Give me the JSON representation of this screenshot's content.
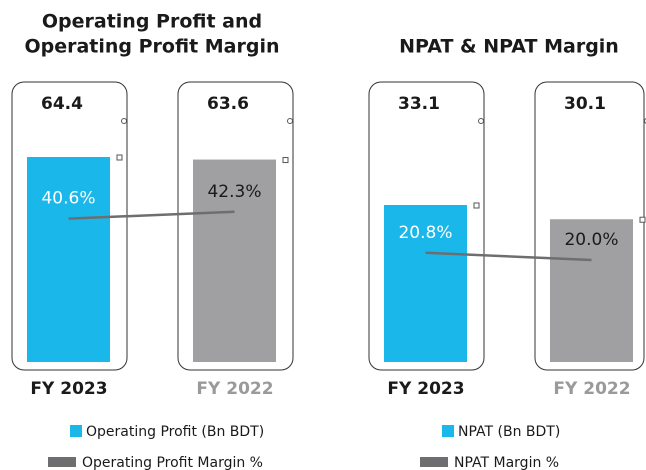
{
  "chart_data": [
    {
      "type": "bar-line",
      "title": [
        "Operating Profit and",
        "Operating Profit Margin"
      ],
      "categories": [
        "FY 2023",
        "FY 2022"
      ],
      "category_colors": [
        "#1a1a1a",
        "#9a9a9c"
      ],
      "series": [
        {
          "name": "Operating Profit (Bn BDT)",
          "type": "bar",
          "colors": [
            "#1ab7ea",
            "#a0a0a2"
          ],
          "values": [
            64.4,
            63.6
          ]
        },
        {
          "name": "Operating Profit Margin %",
          "type": "line",
          "color": "#6e6e70",
          "values": [
            40.6,
            42.3
          ],
          "value_labels": [
            "40.6%",
            "42.3%"
          ]
        }
      ]
    },
    {
      "type": "bar-line",
      "title": "NPAT & NPAT Margin",
      "categories": [
        "FY 2023",
        "FY 2022"
      ],
      "category_colors": [
        "#1a1a1a",
        "#9a9a9c"
      ],
      "series": [
        {
          "name": "NPAT (Bn BDT)",
          "type": "bar",
          "colors": [
            "#1ab7ea",
            "#a0a0a2"
          ],
          "values": [
            33.1,
            30.1
          ]
        },
        {
          "name": "NPAT Margin %",
          "type": "line",
          "color": "#6e6e70",
          "values": [
            20.8,
            20.0
          ],
          "value_labels": [
            "20.8%",
            "20.0%"
          ]
        }
      ]
    }
  ]
}
